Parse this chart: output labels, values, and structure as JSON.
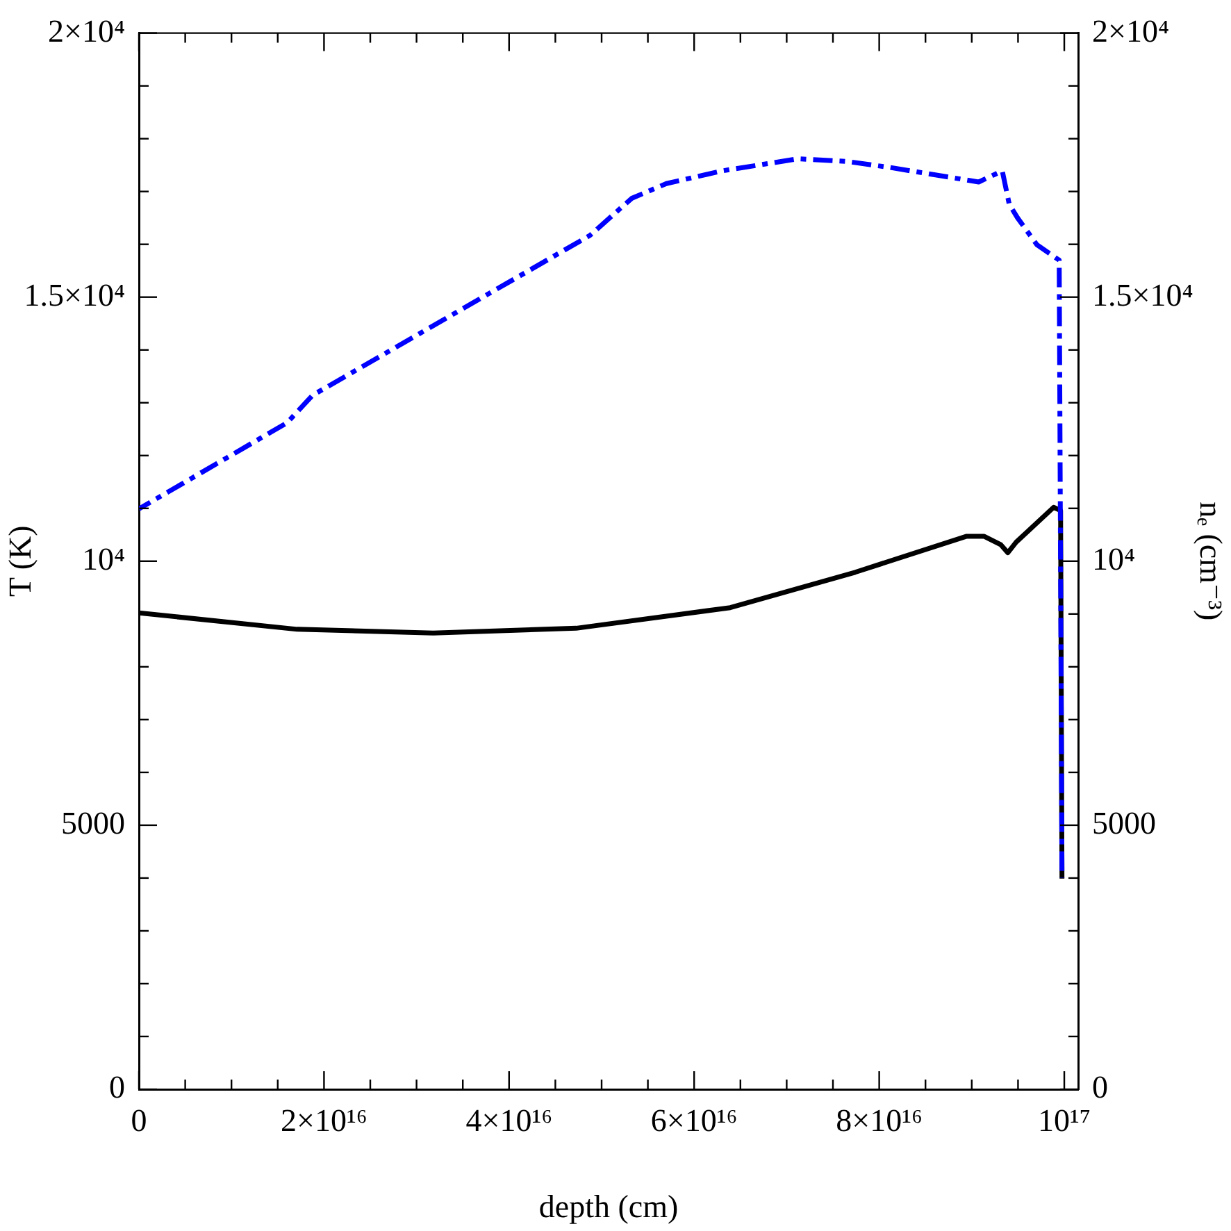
{
  "chart_data": {
    "type": "line",
    "xlabel": "depth (cm)",
    "ylabel": "T (K)",
    "y2label": "nₑ (cm⁻³)",
    "xlim": [
      0,
      1.015e+17
    ],
    "xticks": [
      0,
      {
        "value": 5000000000000000.0,
        "label": null
      },
      {
        "value": 2e+16,
        "label": "2×10¹⁶"
      },
      {
        "value": 1e+16,
        "label": null
      },
      {
        "value": 1.5e+16,
        "label": null
      },
      {
        "value": 2.5e+16,
        "label": null
      },
      {
        "value": 3e+16,
        "label": null
      },
      {
        "value": 3.5e+16,
        "label": null
      },
      {
        "value": 4e+16,
        "label": "4×10¹⁶"
      },
      {
        "value": 4.5e+16,
        "label": null
      },
      {
        "value": 5e+16,
        "label": null
      },
      {
        "value": 5.5e+16,
        "label": null
      },
      {
        "value": 6e+16,
        "label": "6×10¹⁶"
      },
      {
        "value": 6.5e+16,
        "label": null
      },
      {
        "value": 7e+16,
        "label": null
      },
      {
        "value": 7.5e+16,
        "label": null
      },
      {
        "value": 8e+16,
        "label": "8×10¹⁶"
      },
      {
        "value": 8.5e+16,
        "label": null
      },
      {
        "value": 9e+16,
        "label": null
      },
      {
        "value": 9.5e+16,
        "label": null
      },
      {
        "value": 1e+17,
        "label": "10¹⁷"
      }
    ],
    "ylim": [
      0,
      20000
    ],
    "yticks": [
      0,
      {
        "value": 1000,
        "label": null
      },
      {
        "value": 2000,
        "label": null
      },
      {
        "value": 3000,
        "label": null
      },
      {
        "value": 4000,
        "label": null
      },
      5000,
      {
        "value": 6000,
        "label": null
      },
      {
        "value": 7000,
        "label": null
      },
      {
        "value": 8000,
        "label": null
      },
      {
        "value": 9000,
        "label": null
      },
      {
        "value": 10000,
        "label": "10⁴"
      },
      {
        "value": 11000,
        "label": null
      },
      {
        "value": 12000,
        "label": null
      },
      {
        "value": 13000,
        "label": null
      },
      {
        "value": 14000,
        "label": null
      },
      {
        "value": 15000,
        "label": "1.5×10⁴"
      },
      {
        "value": 16000,
        "label": null
      },
      {
        "value": 17000,
        "label": null
      },
      {
        "value": 18000,
        "label": null
      },
      {
        "value": 19000,
        "label": null
      },
      {
        "value": 20000,
        "label": "2×10⁴"
      }
    ],
    "y2lim": [
      0,
      20000
    ],
    "y2ticks": [
      0,
      {
        "value": 1000,
        "label": null
      },
      {
        "value": 2000,
        "label": null
      },
      {
        "value": 3000,
        "label": null
      },
      {
        "value": 4000,
        "label": null
      },
      5000,
      {
        "value": 6000,
        "label": null
      },
      {
        "value": 7000,
        "label": null
      },
      {
        "value": 8000,
        "label": null
      },
      {
        "value": 9000,
        "label": null
      },
      {
        "value": 10000,
        "label": "10⁴"
      },
      {
        "value": 11000,
        "label": null
      },
      {
        "value": 12000,
        "label": null
      },
      {
        "value": 13000,
        "label": null
      },
      {
        "value": 14000,
        "label": null
      },
      {
        "value": 15000,
        "label": "1.5×10⁴"
      },
      {
        "value": 16000,
        "label": null
      },
      {
        "value": 17000,
        "label": null
      },
      {
        "value": 18000,
        "label": null
      },
      {
        "value": 19000,
        "label": null
      },
      {
        "value": 20000,
        "label": "2×10⁴"
      }
    ],
    "grid": false,
    "legend": false,
    "marker": "none",
    "series": [
      {
        "color": "#000000",
        "line_style": "solid",
        "x": [
          0,
          1.71e+16,
          3.18e+16,
          4.725e+16,
          6.39e+16,
          7.74e+16,
          8.94e+16,
          9.135e+16,
          9.315e+16,
          9.39e+16,
          9.48e+16,
          9.885e+16,
          9.96e+16,
          9.975e+16
        ],
        "values": [
          9020,
          8710,
          8640,
          8730,
          9120,
          9790,
          10470,
          10470,
          10310,
          10160,
          10360,
          11020,
          10960,
          3990
        ]
      },
      {
        "color": "#0000ff",
        "line_style": "dashed",
        "x": [
          0,
          1.6e+16,
          1.875e+16,
          4.875e+16,
          5.325e+16,
          5.7e+16,
          6.3e+16,
          7.125e+16,
          7.65e+16,
          8.1e+16,
          9.075e+16,
          9.33e+16,
          9.405e+16,
          9.495e+16,
          9.705e+16,
          9.945e+16,
          9.975e+16
        ],
        "values": [
          10990,
          12620,
          13140,
          16170,
          16870,
          17150,
          17390,
          17620,
          17570,
          17460,
          17180,
          17390,
          16760,
          16500,
          15990,
          15700,
          4000
        ]
      }
    ]
  }
}
